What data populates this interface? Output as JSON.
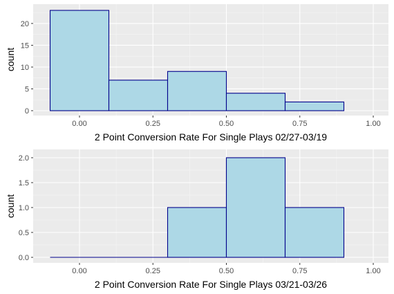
{
  "chart_data": [
    {
      "type": "bar",
      "subtype": "histogram",
      "bins": [
        {
          "xmin": -0.1,
          "xmax": 0.1,
          "count": 23
        },
        {
          "xmin": 0.1,
          "xmax": 0.3,
          "count": 7
        },
        {
          "xmin": 0.3,
          "xmax": 0.5,
          "count": 9
        },
        {
          "xmin": 0.5,
          "xmax": 0.7,
          "count": 4
        },
        {
          "xmin": 0.7,
          "xmax": 0.9,
          "count": 2
        }
      ],
      "xlabel": "2 Point Conversion Rate For Single Plays 02/27-03/19",
      "ylabel": "count",
      "xlim": [
        -0.1,
        1.0
      ],
      "ylim": [
        0,
        23
      ],
      "x_ticks": [
        0.0,
        0.25,
        0.5,
        0.75,
        1.0
      ],
      "x_tick_labels": [
        "0.00",
        "0.25",
        "0.50",
        "0.75",
        "1.00"
      ],
      "y_ticks": [
        0,
        5,
        10,
        15,
        20
      ],
      "y_tick_labels": [
        "0",
        "5",
        "10",
        "15",
        "20"
      ],
      "grid": true,
      "fill_color": "#add8e6",
      "outline_color": "#00008b"
    },
    {
      "type": "bar",
      "subtype": "histogram",
      "bins": [
        {
          "xmin": -0.1,
          "xmax": 0.1,
          "count": 0
        },
        {
          "xmin": 0.1,
          "xmax": 0.3,
          "count": 0
        },
        {
          "xmin": 0.3,
          "xmax": 0.5,
          "count": 1
        },
        {
          "xmin": 0.5,
          "xmax": 0.7,
          "count": 2
        },
        {
          "xmin": 0.7,
          "xmax": 0.9,
          "count": 1
        }
      ],
      "xlabel": "2 Point Conversion Rate For Single Plays 03/21-03/26",
      "ylabel": "count",
      "xlim": [
        -0.1,
        1.0
      ],
      "ylim": [
        0,
        2
      ],
      "x_ticks": [
        0.0,
        0.25,
        0.5,
        0.75,
        1.0
      ],
      "x_tick_labels": [
        "0.00",
        "0.25",
        "0.50",
        "0.75",
        "1.00"
      ],
      "y_ticks": [
        0,
        0.5,
        1.0,
        1.5,
        2.0
      ],
      "y_tick_labels": [
        "0.0",
        "0.5",
        "1.0",
        "1.5",
        "2.0"
      ],
      "grid": true,
      "fill_color": "#add8e6",
      "outline_color": "#00008b"
    }
  ]
}
